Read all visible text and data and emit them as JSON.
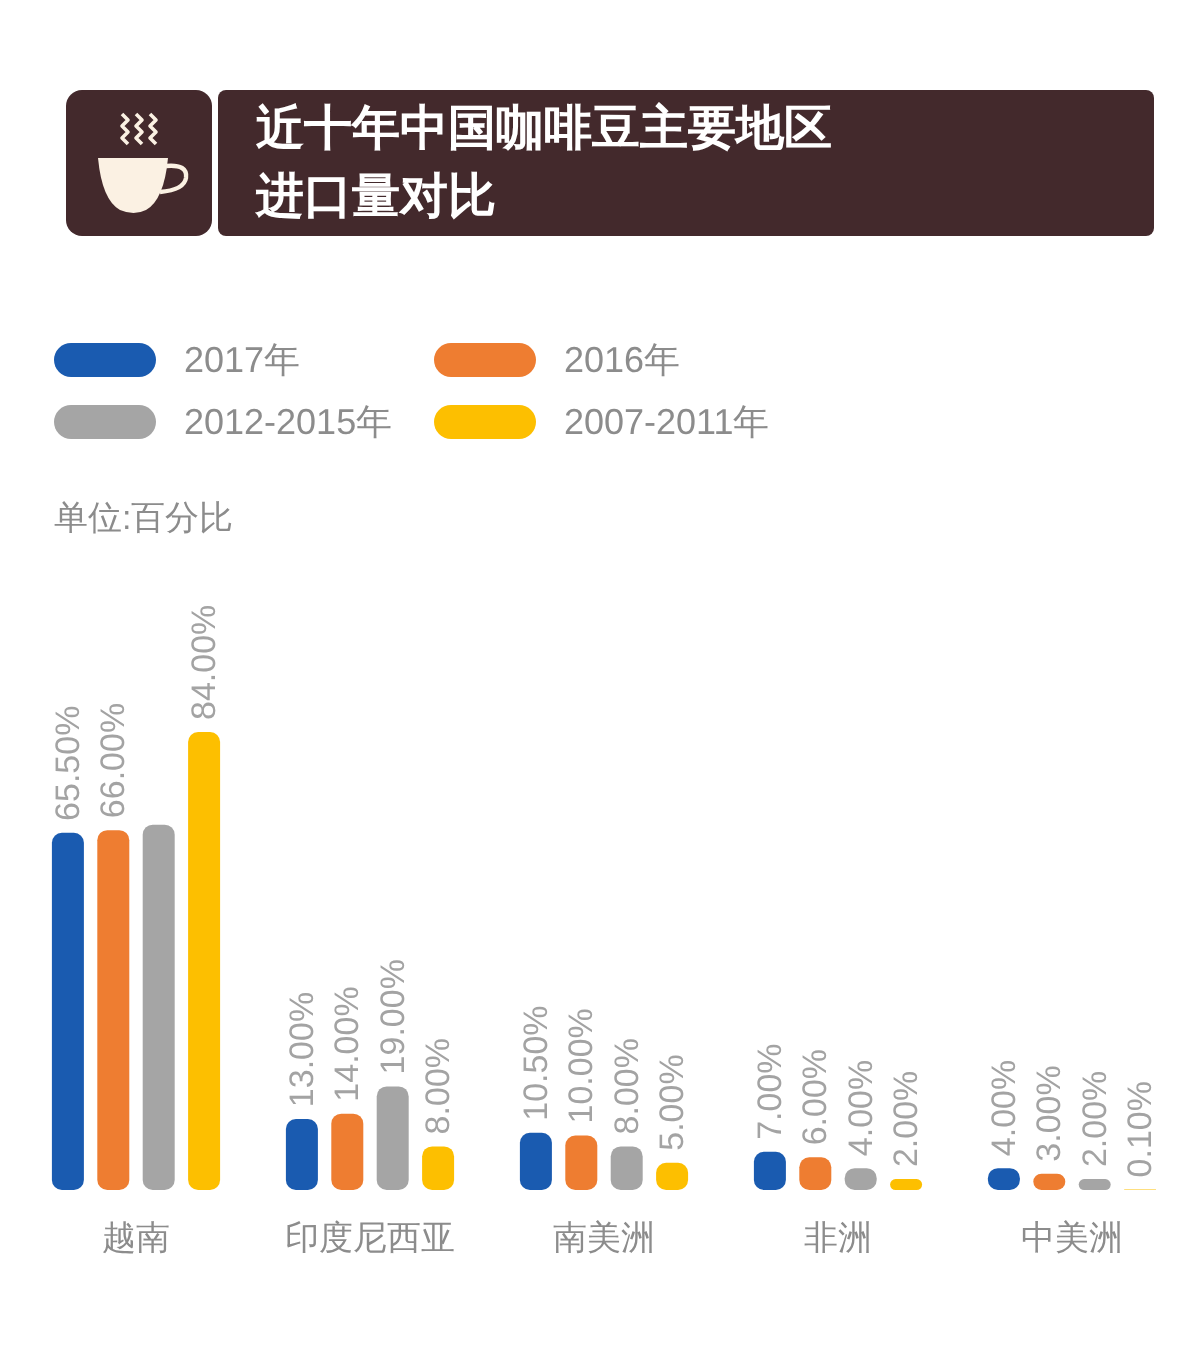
{
  "chart_data": {
    "type": "bar",
    "title": "近十年中国咖啡豆主要地区进口量对比",
    "annotations": [
      "单位:百分比"
    ],
    "categories": [
      "越南",
      "印度尼西亚",
      "南美洲",
      "非洲",
      "中美洲"
    ],
    "legend": "top left",
    "series": [
      {
        "name": "2017年",
        "color": "#1a5bb0",
        "values": [
          65.5,
          13,
          10.5,
          7,
          4
        ],
        "value_labels": [
          "65.50%",
          "13.00%",
          "10.50%",
          "7.00%",
          "4.00%"
        ]
      },
      {
        "name": "2016年",
        "color": "#ee7d31",
        "values": [
          66,
          14,
          10,
          6,
          3
        ],
        "value_labels": [
          "66.00%",
          "14.00%",
          "10.00%",
          "6.00%",
          "3.00%"
        ]
      },
      {
        "name": "2012-2015年",
        "color": "#a5a5a5",
        "values": [
          67,
          19,
          8,
          4,
          2
        ],
        "value_labels": [
          null,
          "19.00%",
          "8.00%",
          "4.00%",
          "2.00%"
        ]
      },
      {
        "name": "2007-2011年",
        "color": "#fdbf00",
        "values": [
          84,
          8,
          5,
          2,
          0.1
        ],
        "value_labels": [
          "84.00%",
          "8.00%",
          "5.00%",
          "2.00%",
          "0.10%"
        ]
      }
    ]
  }
}
